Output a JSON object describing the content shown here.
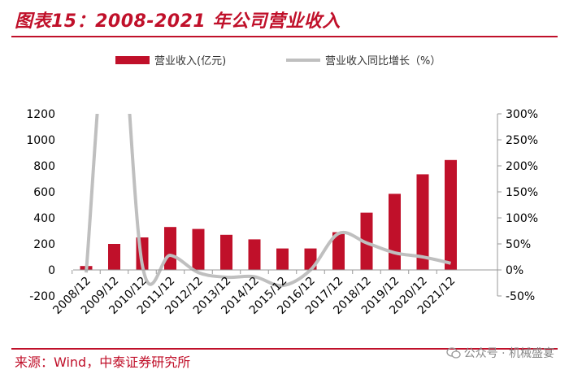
{
  "figure_title": "图表15：2008-2021 年公司营业收入",
  "source": "来源：Wind，中泰证券研究所",
  "watermark": "公众号 · 机械盛宴",
  "colors": {
    "accent": "#c0102a",
    "bar": "#c0102a",
    "line": "#bfbfbf",
    "axis": "#999999"
  },
  "chart_data": {
    "type": "bar",
    "categories": [
      "2008/12",
      "2009/12",
      "2010/12",
      "2011/12",
      "2012/12",
      "2013/12",
      "2014/12",
      "2015/12",
      "2016/12",
      "2017/12",
      "2018/12",
      "2019/12",
      "2020/12",
      "2021/12"
    ],
    "series": [
      {
        "name": "营业收入(亿元)",
        "type": "bar",
        "axis": "left",
        "values": [
          30,
          200,
          250,
          330,
          315,
          270,
          235,
          165,
          165,
          290,
          440,
          585,
          735,
          845
        ]
      },
      {
        "name": "营业收入同比增长（%）",
        "type": "line",
        "axis": "right",
        "values": [
          -5,
          600,
          10,
          28,
          -5,
          -14,
          -13,
          -30,
          0,
          70,
          52,
          33,
          25,
          13
        ]
      }
    ],
    "left_axis": {
      "ylim": [
        -200,
        1200
      ],
      "ticks": [
        "-200",
        "0",
        "200",
        "400",
        "600",
        "800",
        "1000",
        "1200"
      ]
    },
    "right_axis": {
      "ylim": [
        -50,
        300
      ],
      "ticks": [
        "-50%",
        "0%",
        "50%",
        "100%",
        "150%",
        "200%",
        "250%",
        "300%"
      ]
    },
    "legend": {
      "position": "top"
    },
    "grid": false
  }
}
